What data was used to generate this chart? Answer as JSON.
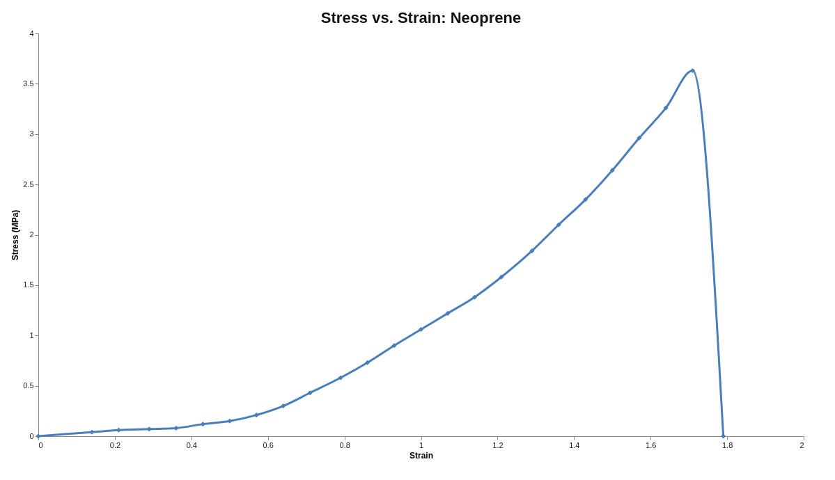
{
  "chart_data": {
    "type": "line",
    "title": "Stress vs. Strain: Neoprene",
    "xlabel": "Strain",
    "ylabel": "Stress (MPa)",
    "x": [
      0,
      0.14,
      0.21,
      0.29,
      0.36,
      0.43,
      0.5,
      0.57,
      0.64,
      0.71,
      0.79,
      0.86,
      0.93,
      1.0,
      1.07,
      1.14,
      1.21,
      1.29,
      1.36,
      1.43,
      1.5,
      1.57,
      1.64,
      1.71,
      1.79
    ],
    "series": [
      {
        "color": "#4a7ebb",
        "values": [
          0,
          0.04,
          0.06,
          0.07,
          0.08,
          0.12,
          0.15,
          0.21,
          0.3,
          0.43,
          0.58,
          0.73,
          0.9,
          1.06,
          1.22,
          1.38,
          1.58,
          1.84,
          2.1,
          2.35,
          2.64,
          2.96,
          3.26,
          3.63,
          0
        ]
      }
    ],
    "xlim": [
      0,
      2
    ],
    "xticks": [
      0,
      0.2,
      0.4,
      0.6,
      0.8,
      1,
      1.2,
      1.4,
      1.6,
      1.8,
      2
    ],
    "ylim": [
      0,
      4
    ],
    "yticks": [
      0,
      0.5,
      1,
      1.5,
      2,
      2.5,
      3,
      3.5,
      4
    ],
    "grid": false,
    "legend": false,
    "marker": "diamond",
    "line_style": "solid"
  }
}
